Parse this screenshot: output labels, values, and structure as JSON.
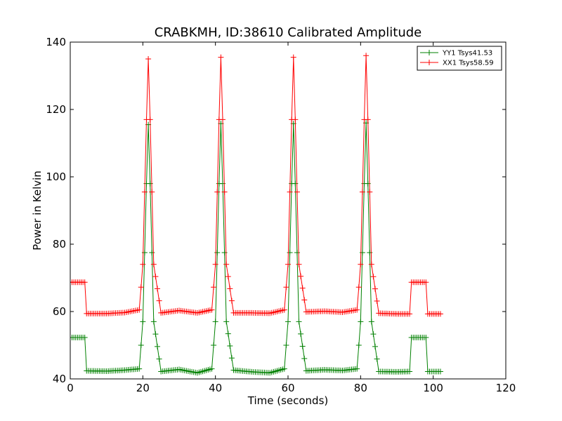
{
  "chart_data": {
    "type": "line",
    "title": "CRABKMH, ID:38610 Calibrated Amplitude",
    "xlabel": "Time (seconds)",
    "ylabel": "Power in Kelvin",
    "xlim": [
      0,
      120
    ],
    "ylim": [
      40,
      140
    ],
    "xticks": [
      "0",
      "20",
      "40",
      "60",
      "80",
      "100",
      "120"
    ],
    "yticks": [
      "40",
      "60",
      "80",
      "100",
      "120",
      "140"
    ],
    "grid": false,
    "legend_position": "top-right",
    "marker": "+",
    "series": [
      {
        "name": "YY1 Tsys41.53",
        "color": "#008000",
        "description": "Baseline ~42 K with four peaks ~116 K at 21.5, 41.5, 61.5, 81.5 s; plateaus ~52 K at 0-4 s and 94-98 s",
        "x": [
          0,
          4,
          4.5,
          10,
          15,
          19,
          20,
          21,
          21.5,
          22,
          23,
          25,
          30,
          35,
          39,
          40,
          41,
          41.5,
          42,
          43,
          45,
          50,
          55,
          59,
          60,
          61,
          61.5,
          62,
          63,
          65,
          70,
          75,
          79,
          80,
          81,
          81.5,
          82,
          83,
          85,
          90,
          93.5,
          94,
          98,
          98.5,
          102
        ],
        "y": [
          52.3,
          52.3,
          42.4,
          42.3,
          42.6,
          43,
          57,
          98,
          115.5,
          98,
          57,
          42.2,
          42.8,
          41.8,
          43,
          57,
          98,
          115.8,
          98,
          57,
          42.6,
          42.1,
          41.8,
          43,
          57,
          98,
          115.8,
          98,
          57,
          42.4,
          42.7,
          42.5,
          43,
          57,
          98,
          116,
          98,
          57,
          42.2,
          42.1,
          42.2,
          52.3,
          52.3,
          42.2,
          42.2
        ]
      },
      {
        "name": "XX1 Tsys58.59",
        "color": "#ff0000",
        "description": "Baseline ~59.5 K with four peaks ~135 K at 21.5, 41.5, 61.5, 81.5 s; plateaus ~68.7 K at 0-4 s and 94-98 s",
        "x": [
          0,
          4,
          4.5,
          10,
          15,
          19,
          20,
          21,
          21.5,
          22,
          23,
          25,
          30,
          35,
          39,
          40,
          41,
          41.5,
          42,
          43,
          45,
          50,
          55,
          59,
          60,
          61,
          61.5,
          62,
          63,
          65,
          70,
          75,
          79,
          80,
          81,
          81.5,
          82,
          83,
          85,
          90,
          93.5,
          94,
          98,
          98.5,
          102
        ],
        "y": [
          68.7,
          68.7,
          59.4,
          59.4,
          59.7,
          60.5,
          74,
          117,
          135,
          117,
          74,
          59.6,
          60.3,
          59.6,
          60.5,
          74,
          117,
          135.5,
          117,
          74,
          59.6,
          59.6,
          59.5,
          60.5,
          74,
          117,
          135.5,
          117,
          74,
          59.9,
          60.1,
          59.8,
          60.5,
          74,
          117,
          136,
          117,
          74,
          59.5,
          59.3,
          59.3,
          68.7,
          68.7,
          59.3,
          59.3
        ]
      }
    ]
  }
}
